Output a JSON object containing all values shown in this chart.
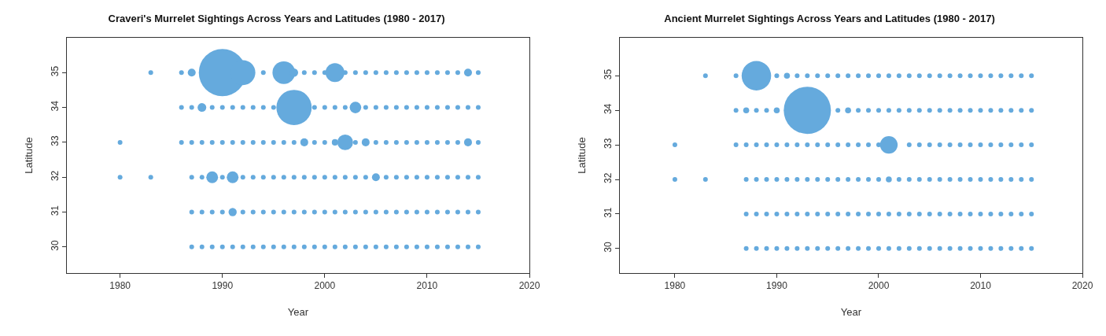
{
  "chart_data": [
    {
      "type": "bubble",
      "title": "Craveri's Murrelet Sightings Across Years and Latitudes (1980 - 2017)",
      "xlabel": "Year",
      "ylabel": "Latitude",
      "xlim": [
        1974.8,
        2020
      ],
      "xticks": [
        1980,
        1990,
        2000,
        2010,
        2020
      ],
      "ylim": [
        29.25,
        36
      ],
      "yticks": [
        30,
        31,
        32,
        33,
        34,
        35
      ],
      "grid": false,
      "series": [
        {
          "color": "#65aadd",
          "x": [
            1983,
            1986,
            1987,
            1990,
            1992,
            1994,
            1996,
            1997,
            1998,
            1999,
            2000,
            2001,
            2002,
            2003,
            2004,
            2005,
            2006,
            2007,
            2008,
            2009,
            2010,
            2011,
            2012,
            2013,
            2014,
            2015
          ],
          "values": [
            35,
            35,
            35,
            35,
            35,
            35,
            35,
            35,
            35,
            35,
            35,
            35,
            35,
            35,
            35,
            35,
            35,
            35,
            35,
            35,
            35,
            35,
            35,
            35,
            35,
            35
          ],
          "sizes": [
            0.005,
            0.005,
            0.028,
            1,
            0.28,
            0.005,
            0.23,
            0.03,
            0.005,
            0.005,
            0.005,
            0.16,
            0.01,
            0.005,
            0.005,
            0.005,
            0.005,
            0.005,
            0.005,
            0.005,
            0.005,
            0.005,
            0.005,
            0.005,
            0.028,
            0.005
          ]
        },
        {
          "color": "#65aadd",
          "x": [
            1986,
            1987,
            1988,
            1989,
            1990,
            1991,
            1992,
            1993,
            1994,
            1995,
            1997,
            1999,
            2000,
            2001,
            2002,
            2003,
            2004,
            2005,
            2006,
            2007,
            2008,
            2009,
            2010,
            2011,
            2012,
            2013,
            2014,
            2015
          ],
          "values": [
            34,
            34,
            34,
            34,
            34,
            34,
            34,
            34,
            34,
            34,
            34,
            34,
            34,
            34,
            34,
            34,
            34,
            34,
            34,
            34,
            34,
            34,
            34,
            34,
            34,
            34,
            34,
            34
          ],
          "sizes": [
            0.005,
            0.005,
            0.034,
            0.005,
            0.005,
            0.008,
            0.005,
            0.005,
            0.005,
            0.005,
            0.56,
            0.005,
            0.005,
            0.005,
            0.005,
            0.06,
            0.005,
            0.005,
            0.005,
            0.005,
            0.005,
            0.005,
            0.005,
            0.005,
            0.005,
            0.005,
            0.005,
            0.005
          ]
        },
        {
          "color": "#65aadd",
          "x": [
            1980,
            1986,
            1987,
            1988,
            1989,
            1990,
            1991,
            1992,
            1993,
            1994,
            1995,
            1996,
            1997,
            1998,
            1999,
            2000,
            2001,
            2002,
            2003,
            2004,
            2005,
            2006,
            2007,
            2008,
            2009,
            2010,
            2011,
            2012,
            2013,
            2014,
            2015
          ],
          "values": [
            33,
            33,
            33,
            33,
            33,
            33,
            33,
            33,
            33,
            33,
            33,
            33,
            33,
            33,
            33,
            33,
            33,
            33,
            33,
            33,
            33,
            33,
            33,
            33,
            33,
            33,
            33,
            33,
            33,
            33,
            33
          ],
          "sizes": [
            0.005,
            0.005,
            0.005,
            0.005,
            0.005,
            0.005,
            0.005,
            0.005,
            0.005,
            0.005,
            0.005,
            0.005,
            0.008,
            0.028,
            0.005,
            0.005,
            0.018,
            0.11,
            0.005,
            0.028,
            0.005,
            0.005,
            0.005,
            0.005,
            0.005,
            0.005,
            0.005,
            0.005,
            0.005,
            0.028,
            0.005
          ]
        },
        {
          "color": "#65aadd",
          "x": [
            1980,
            1983,
            1987,
            1988,
            1989,
            1990,
            1991,
            1992,
            1993,
            1994,
            1995,
            1996,
            1997,
            1998,
            1999,
            2000,
            2001,
            2002,
            2003,
            2004,
            2005,
            2006,
            2007,
            2008,
            2009,
            2010,
            2011,
            2012,
            2013,
            2014,
            2015
          ],
          "values": [
            32,
            32,
            32,
            32,
            32,
            32,
            32,
            32,
            32,
            32,
            32,
            32,
            32,
            32,
            32,
            32,
            32,
            32,
            32,
            32,
            32,
            32,
            32,
            32,
            32,
            32,
            32,
            32,
            32,
            32,
            32
          ],
          "sizes": [
            0.005,
            0.005,
            0.005,
            0.005,
            0.0625,
            0.005,
            0.0625,
            0.005,
            0.005,
            0.005,
            0.005,
            0.005,
            0.005,
            0.005,
            0.005,
            0.005,
            0.008,
            0.005,
            0.005,
            0.005,
            0.028,
            0.005,
            0.005,
            0.005,
            0.005,
            0.005,
            0.005,
            0.005,
            0.005,
            0.005,
            0.005
          ]
        },
        {
          "color": "#65aadd",
          "x": [
            1987,
            1988,
            1989,
            1990,
            1991,
            1992,
            1993,
            1994,
            1995,
            1996,
            1997,
            1998,
            1999,
            2000,
            2001,
            2002,
            2003,
            2004,
            2005,
            2006,
            2007,
            2008,
            2009,
            2010,
            2011,
            2012,
            2013,
            2014,
            2015
          ],
          "values": [
            31,
            31,
            31,
            31,
            31,
            31,
            31,
            31,
            31,
            31,
            31,
            31,
            31,
            31,
            31,
            31,
            31,
            31,
            31,
            31,
            31,
            31,
            31,
            31,
            31,
            31,
            31,
            31,
            31
          ],
          "sizes": [
            0.005,
            0.005,
            0.005,
            0.005,
            0.03,
            0.005,
            0.005,
            0.005,
            0.005,
            0.005,
            0.005,
            0.005,
            0.005,
            0.005,
            0.005,
            0.005,
            0.005,
            0.005,
            0.005,
            0.005,
            0.005,
            0.005,
            0.005,
            0.005,
            0.005,
            0.005,
            0.005,
            0.005,
            0.005
          ]
        },
        {
          "color": "#65aadd",
          "x": [
            1987,
            1988,
            1989,
            1990,
            1991,
            1992,
            1993,
            1994,
            1995,
            1996,
            1997,
            1998,
            1999,
            2000,
            2001,
            2002,
            2003,
            2004,
            2005,
            2006,
            2007,
            2008,
            2009,
            2010,
            2011,
            2012,
            2013,
            2014,
            2015
          ],
          "values": [
            30,
            30,
            30,
            30,
            30,
            30,
            30,
            30,
            30,
            30,
            30,
            30,
            30,
            30,
            30,
            30,
            30,
            30,
            30,
            30,
            30,
            30,
            30,
            30,
            30,
            30,
            30,
            30,
            30
          ],
          "sizes": [
            0.005,
            0.005,
            0.005,
            0.005,
            0.005,
            0.005,
            0.005,
            0.005,
            0.005,
            0.005,
            0.005,
            0.005,
            0.005,
            0.005,
            0.005,
            0.005,
            0.005,
            0.005,
            0.005,
            0.005,
            0.005,
            0.005,
            0.005,
            0.005,
            0.005,
            0.005,
            0.005,
            0.005,
            0.005
          ]
        }
      ]
    },
    {
      "type": "bubble",
      "title": "Ancient Murrelet Sightings Across Years and Latitudes (1980 - 2017)",
      "xlabel": "Year",
      "ylabel": "Latitude",
      "xlim": [
        1974.6,
        2020
      ],
      "xticks": [
        1980,
        1990,
        2000,
        2010,
        2020
      ],
      "ylim": [
        29.29,
        36.1
      ],
      "yticks": [
        30,
        31,
        32,
        33,
        34,
        35
      ],
      "grid": false,
      "series": [
        {
          "color": "#65aadd",
          "x": [
            1983,
            1986,
            1988,
            1990,
            1991,
            1992,
            1993,
            1994,
            1995,
            1996,
            1997,
            1998,
            1999,
            2000,
            2001,
            2002,
            2003,
            2004,
            2005,
            2006,
            2007,
            2008,
            2009,
            2010,
            2011,
            2012,
            2013,
            2014,
            2015
          ],
          "values": [
            35,
            35,
            35,
            35,
            35,
            35,
            35,
            35,
            35,
            35,
            35,
            35,
            35,
            35,
            35,
            35,
            35,
            35,
            35,
            35,
            35,
            35,
            35,
            35,
            35,
            35,
            35,
            35,
            35
          ],
          "sizes": [
            0.005,
            0.005,
            0.39,
            0.005,
            0.016,
            0.005,
            0.005,
            0.005,
            0.005,
            0.005,
            0.005,
            0.005,
            0.005,
            0.005,
            0.005,
            0.005,
            0.005,
            0.005,
            0.005,
            0.005,
            0.005,
            0.005,
            0.005,
            0.005,
            0.005,
            0.005,
            0.005,
            0.005,
            0.005
          ]
        },
        {
          "color": "#65aadd",
          "x": [
            1986,
            1987,
            1988,
            1989,
            1990,
            1993,
            1996,
            1997,
            1998,
            1999,
            2000,
            2001,
            2002,
            2003,
            2004,
            2005,
            2006,
            2007,
            2008,
            2009,
            2010,
            2011,
            2012,
            2013,
            2014,
            2015
          ],
          "values": [
            34,
            34,
            34,
            34,
            34,
            34,
            34,
            34,
            34,
            34,
            34,
            34,
            34,
            34,
            34,
            34,
            34,
            34,
            34,
            34,
            34,
            34,
            34,
            34,
            34,
            34
          ],
          "sizes": [
            0.005,
            0.016,
            0.005,
            0.005,
            0.016,
            1,
            0.005,
            0.016,
            0.005,
            0.005,
            0.005,
            0.005,
            0.005,
            0.005,
            0.005,
            0.005,
            0.005,
            0.005,
            0.005,
            0.005,
            0.005,
            0.005,
            0.005,
            0.005,
            0.005,
            0.005
          ]
        },
        {
          "color": "#65aadd",
          "x": [
            1980,
            1986,
            1987,
            1988,
            1989,
            1990,
            1991,
            1992,
            1993,
            1994,
            1995,
            1996,
            1997,
            1998,
            1999,
            2000,
            2001,
            2003,
            2004,
            2005,
            2006,
            2007,
            2008,
            2009,
            2010,
            2011,
            2012,
            2013,
            2014,
            2015
          ],
          "values": [
            33,
            33,
            33,
            33,
            33,
            33,
            33,
            33,
            33,
            33,
            33,
            33,
            33,
            33,
            33,
            33,
            33,
            33,
            33,
            33,
            33,
            33,
            33,
            33,
            33,
            33,
            33,
            33,
            33,
            33
          ],
          "sizes": [
            0.005,
            0.005,
            0.005,
            0.005,
            0.005,
            0.005,
            0.005,
            0.005,
            0.005,
            0.005,
            0.005,
            0.005,
            0.005,
            0.005,
            0.005,
            0.005,
            0.14,
            0.005,
            0.005,
            0.005,
            0.005,
            0.005,
            0.005,
            0.005,
            0.005,
            0.005,
            0.005,
            0.005,
            0.005,
            0.005
          ]
        },
        {
          "color": "#65aadd",
          "x": [
            1980,
            1983,
            1987,
            1988,
            1989,
            1990,
            1991,
            1992,
            1993,
            1994,
            1995,
            1996,
            1997,
            1998,
            1999,
            2000,
            2001,
            2002,
            2003,
            2004,
            2005,
            2006,
            2007,
            2008,
            2009,
            2010,
            2011,
            2012,
            2013,
            2014,
            2015
          ],
          "values": [
            32,
            32,
            32,
            32,
            32,
            32,
            32,
            32,
            32,
            32,
            32,
            32,
            32,
            32,
            32,
            32,
            32,
            32,
            32,
            32,
            32,
            32,
            32,
            32,
            32,
            32,
            32,
            32,
            32,
            32,
            32
          ],
          "sizes": [
            0.005,
            0.005,
            0.005,
            0.005,
            0.005,
            0.005,
            0.005,
            0.005,
            0.005,
            0.005,
            0.005,
            0.005,
            0.005,
            0.005,
            0.005,
            0.005,
            0.016,
            0.005,
            0.005,
            0.005,
            0.005,
            0.005,
            0.005,
            0.005,
            0.005,
            0.005,
            0.005,
            0.005,
            0.005,
            0.005,
            0.005
          ]
        },
        {
          "color": "#65aadd",
          "x": [
            1987,
            1988,
            1989,
            1990,
            1991,
            1992,
            1993,
            1994,
            1995,
            1996,
            1997,
            1998,
            1999,
            2000,
            2001,
            2002,
            2003,
            2004,
            2005,
            2006,
            2007,
            2008,
            2009,
            2010,
            2011,
            2012,
            2013,
            2014,
            2015
          ],
          "values": [
            31,
            31,
            31,
            31,
            31,
            31,
            31,
            31,
            31,
            31,
            31,
            31,
            31,
            31,
            31,
            31,
            31,
            31,
            31,
            31,
            31,
            31,
            31,
            31,
            31,
            31,
            31,
            31,
            31
          ],
          "sizes": [
            0.005,
            0.005,
            0.005,
            0.005,
            0.005,
            0.005,
            0.005,
            0.005,
            0.005,
            0.005,
            0.005,
            0.005,
            0.005,
            0.005,
            0.005,
            0.005,
            0.005,
            0.005,
            0.005,
            0.005,
            0.005,
            0.005,
            0.005,
            0.005,
            0.005,
            0.005,
            0.005,
            0.005,
            0.005
          ]
        },
        {
          "color": "#65aadd",
          "x": [
            1987,
            1988,
            1989,
            1990,
            1991,
            1992,
            1993,
            1994,
            1995,
            1996,
            1997,
            1998,
            1999,
            2000,
            2001,
            2002,
            2003,
            2004,
            2005,
            2006,
            2007,
            2008,
            2009,
            2010,
            2011,
            2012,
            2013,
            2014,
            2015
          ],
          "values": [
            30,
            30,
            30,
            30,
            30,
            30,
            30,
            30,
            30,
            30,
            30,
            30,
            30,
            30,
            30,
            30,
            30,
            30,
            30,
            30,
            30,
            30,
            30,
            30,
            30,
            30,
            30,
            30,
            30
          ],
          "sizes": [
            0.005,
            0.005,
            0.005,
            0.005,
            0.005,
            0.005,
            0.005,
            0.005,
            0.005,
            0.005,
            0.005,
            0.005,
            0.005,
            0.005,
            0.005,
            0.005,
            0.005,
            0.005,
            0.005,
            0.005,
            0.005,
            0.005,
            0.005,
            0.005,
            0.005,
            0.005,
            0.005,
            0.005,
            0.005
          ]
        }
      ]
    }
  ]
}
